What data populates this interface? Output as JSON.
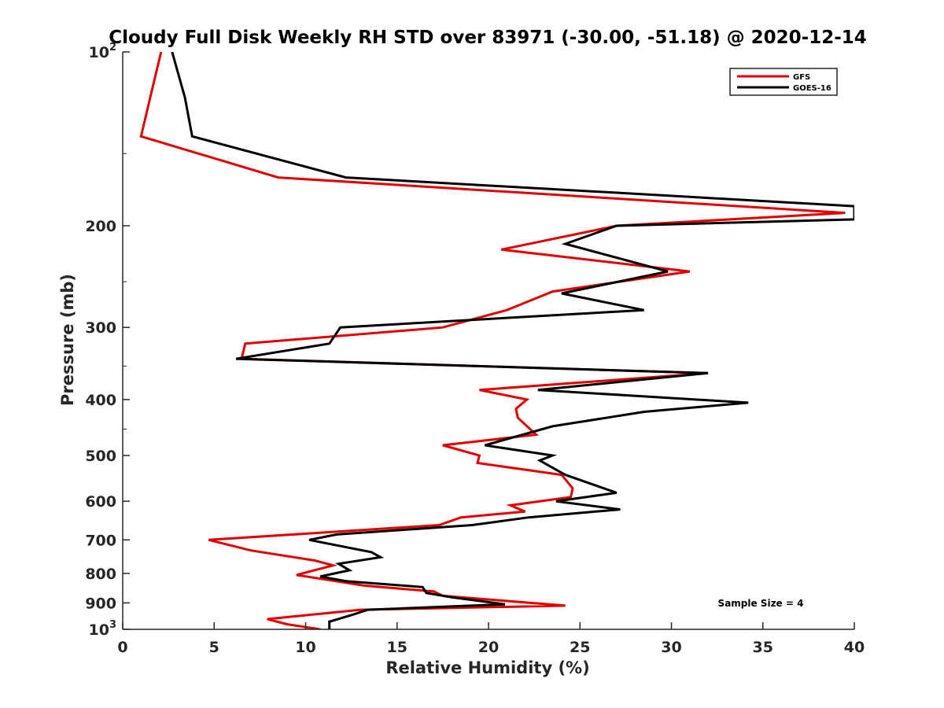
{
  "chart_data": {
    "type": "line",
    "title": "Cloudy Full Disk Weekly RH STD over 83971 (-30.00, -51.18) @ 2020-12-14",
    "xlabel": "Relative Humidity (%)",
    "ylabel": "Pressure (mb)",
    "xlim": [
      0,
      40
    ],
    "ylim": [
      100,
      1000
    ],
    "y_scale": "log",
    "y_reversed": true,
    "x_ticks": [
      "0",
      "5",
      "10",
      "15",
      "20",
      "25",
      "30",
      "35",
      "40"
    ],
    "y_ticks": [
      {
        "value": 100,
        "base": "10",
        "exp": "2"
      },
      {
        "value": 200,
        "base": "200",
        "exp": ""
      },
      {
        "value": 300,
        "base": "300",
        "exp": ""
      },
      {
        "value": 400,
        "base": "400",
        "exp": ""
      },
      {
        "value": 500,
        "base": "500",
        "exp": ""
      },
      {
        "value": 600,
        "base": "600",
        "exp": ""
      },
      {
        "value": 700,
        "base": "700",
        "exp": ""
      },
      {
        "value": 800,
        "base": "800",
        "exp": ""
      },
      {
        "value": 900,
        "base": "900",
        "exp": ""
      },
      {
        "value": 1000,
        "base": "10",
        "exp": "3"
      }
    ],
    "grid": false,
    "legend_position": "top-right",
    "annotation": "Sample Size = 4",
    "series": [
      {
        "name": "GFS",
        "color": "#e00000",
        "points": [
          [
            2.1,
            100
          ],
          [
            1.5,
            120
          ],
          [
            1.0,
            140
          ],
          [
            8.5,
            165
          ],
          [
            39.5,
            190
          ],
          [
            27,
            200
          ],
          [
            20.7,
            220
          ],
          [
            31,
            240
          ],
          [
            23.5,
            260
          ],
          [
            21,
            280
          ],
          [
            17.5,
            300
          ],
          [
            6.7,
            320
          ],
          [
            6.5,
            340
          ],
          [
            32,
            360
          ],
          [
            19.5,
            385
          ],
          [
            22.1,
            400
          ],
          [
            21.5,
            415
          ],
          [
            21.6,
            430
          ],
          [
            22.6,
            460
          ],
          [
            17.5,
            480
          ],
          [
            19.5,
            500
          ],
          [
            19.4,
            515
          ],
          [
            24,
            540
          ],
          [
            24.6,
            570
          ],
          [
            24.5,
            590
          ],
          [
            21.2,
            610
          ],
          [
            22.0,
            625
          ],
          [
            18.5,
            640
          ],
          [
            17.3,
            660
          ],
          [
            4.7,
            700
          ],
          [
            7.0,
            730
          ],
          [
            10.5,
            760
          ],
          [
            11.5,
            775
          ],
          [
            9.5,
            805
          ],
          [
            13.2,
            840
          ],
          [
            17.0,
            860
          ],
          [
            17.5,
            875
          ],
          [
            24.2,
            910
          ],
          [
            13.0,
            925
          ],
          [
            7.9,
            960
          ],
          [
            9.0,
            980
          ],
          [
            10.8,
            1000
          ]
        ]
      },
      {
        "name": "GOES-16",
        "color": "#000000",
        "points": [
          [
            2.7,
            100
          ],
          [
            3.4,
            120
          ],
          [
            3.8,
            140
          ],
          [
            12.2,
            165
          ],
          [
            40,
            185
          ],
          [
            40,
            195
          ],
          [
            27,
            200
          ],
          [
            24.2,
            215
          ],
          [
            29.8,
            240
          ],
          [
            24.0,
            262
          ],
          [
            28.5,
            280
          ],
          [
            11.9,
            300
          ],
          [
            11.3,
            320
          ],
          [
            6.2,
            340
          ],
          [
            32,
            360
          ],
          [
            22.7,
            385
          ],
          [
            34.2,
            405
          ],
          [
            28.5,
            420
          ],
          [
            23.5,
            445
          ],
          [
            19.8,
            480
          ],
          [
            23.5,
            500
          ],
          [
            22.8,
            510
          ],
          [
            24.2,
            540
          ],
          [
            27.0,
            580
          ],
          [
            23.7,
            600
          ],
          [
            27.2,
            620
          ],
          [
            22.2,
            640
          ],
          [
            19.1,
            660
          ],
          [
            11.7,
            685
          ],
          [
            10.2,
            700
          ],
          [
            13.6,
            735
          ],
          [
            14.1,
            750
          ],
          [
            11.8,
            770
          ],
          [
            12.4,
            790
          ],
          [
            10.8,
            810
          ],
          [
            12.2,
            825
          ],
          [
            16.4,
            845
          ],
          [
            16.6,
            865
          ],
          [
            18.0,
            880
          ],
          [
            20.9,
            905
          ],
          [
            13.4,
            925
          ],
          [
            12.5,
            945
          ],
          [
            11.3,
            970
          ],
          [
            11.3,
            990
          ],
          [
            11.3,
            1000
          ]
        ]
      }
    ]
  }
}
